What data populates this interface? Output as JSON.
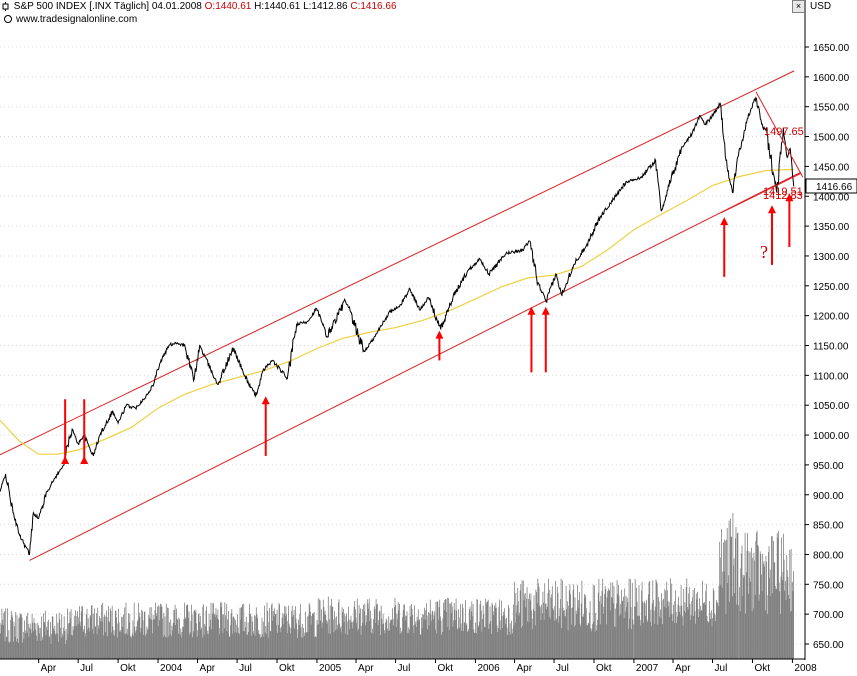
{
  "header": {
    "symbol": "S&P 500 INDEX [.INX  Täglich]",
    "date": "04.01.2008",
    "open": "O:1440.61",
    "high": "H:1440.61",
    "low": "L:1412.86",
    "close": "C:1416.66",
    "source": "www.tradesignalonline.com",
    "unit": "USD",
    "close_button": "×"
  },
  "colors": {
    "price": "#000000",
    "moving_average": "#f0d040",
    "channel": "#e02020",
    "arrows": "#ff0000",
    "volume": "#808080",
    "label_red": "#cc0000"
  },
  "annotations": {
    "level_high": "1497.65",
    "level_mid": "1419.51",
    "level_low": "1412.83",
    "question_mark": "?"
  },
  "chart_data": {
    "type": "line",
    "title": "S&P 500 INDEX [.INX  Täglich]",
    "ylabel": "USD",
    "ylim": [
      640,
      1690
    ],
    "x_tick_labels": [
      "Apr",
      "Jul",
      "Okt",
      "2004",
      "Apr",
      "Jul",
      "Okt",
      "2005",
      "Apr",
      "Jul",
      "Okt",
      "2006",
      "Apr",
      "Jul",
      "Okt",
      "2007",
      "Apr",
      "Jul",
      "Okt",
      "2008"
    ],
    "x_tick_dates": [
      "2003-04-01",
      "2003-07-01",
      "2003-10-01",
      "2004-01-01",
      "2004-04-01",
      "2004-07-01",
      "2004-10-01",
      "2005-01-01",
      "2005-04-01",
      "2005-07-01",
      "2005-10-01",
      "2006-01-01",
      "2006-04-01",
      "2006-07-01",
      "2006-10-01",
      "2007-01-01",
      "2007-04-01",
      "2007-07-01",
      "2007-10-01",
      "2008-01-01"
    ],
    "y_ticks": [
      650,
      700,
      750,
      800,
      850,
      900,
      950,
      1000,
      1050,
      1100,
      1150,
      1200,
      1250,
      1300,
      1350,
      1400,
      1450,
      1500,
      1550,
      1600,
      1650
    ],
    "last_price_label": "1416.66",
    "series": [
      {
        "kind": "price",
        "points": [
          [
            "2003-01-02",
            905
          ],
          [
            "2003-01-15",
            935
          ],
          [
            "2003-02-01",
            870
          ],
          [
            "2003-02-15",
            835
          ],
          [
            "2003-03-11",
            800
          ],
          [
            "2003-03-20",
            870
          ],
          [
            "2003-04-01",
            860
          ],
          [
            "2003-04-20",
            905
          ],
          [
            "2003-05-10",
            930
          ],
          [
            "2003-05-25",
            945
          ],
          [
            "2003-06-17",
            1010
          ],
          [
            "2003-07-01",
            985
          ],
          [
            "2003-07-14",
            1000
          ],
          [
            "2003-08-05",
            965
          ],
          [
            "2003-08-20",
            1000
          ],
          [
            "2003-09-18",
            1040
          ],
          [
            "2003-10-01",
            1020
          ],
          [
            "2003-10-20",
            1050
          ],
          [
            "2003-11-10",
            1045
          ],
          [
            "2003-11-28",
            1060
          ],
          [
            "2003-12-15",
            1075
          ],
          [
            "2004-01-05",
            1120
          ],
          [
            "2004-01-26",
            1150
          ],
          [
            "2004-02-11",
            1155
          ],
          [
            "2004-03-01",
            1150
          ],
          [
            "2004-03-24",
            1093
          ],
          [
            "2004-04-06",
            1150
          ],
          [
            "2004-05-01",
            1110
          ],
          [
            "2004-05-17",
            1085
          ],
          [
            "2004-06-23",
            1145
          ],
          [
            "2004-07-15",
            1105
          ],
          [
            "2004-08-12",
            1065
          ],
          [
            "2004-09-01",
            1110
          ],
          [
            "2004-09-20",
            1125
          ],
          [
            "2004-10-25",
            1095
          ],
          [
            "2004-11-15",
            1185
          ],
          [
            "2004-12-10",
            1190
          ],
          [
            "2004-12-31",
            1212
          ],
          [
            "2005-01-24",
            1165
          ],
          [
            "2005-03-07",
            1225
          ],
          [
            "2005-04-20",
            1140
          ],
          [
            "2005-05-15",
            1165
          ],
          [
            "2005-06-15",
            1205
          ],
          [
            "2005-07-10",
            1215
          ],
          [
            "2005-08-03",
            1245
          ],
          [
            "2005-08-25",
            1210
          ],
          [
            "2005-09-15",
            1230
          ],
          [
            "2005-10-13",
            1177
          ],
          [
            "2005-11-10",
            1230
          ],
          [
            "2005-12-14",
            1275
          ],
          [
            "2006-01-11",
            1295
          ],
          [
            "2006-02-01",
            1270
          ],
          [
            "2006-03-15",
            1305
          ],
          [
            "2006-04-20",
            1310
          ],
          [
            "2006-05-05",
            1325
          ],
          [
            "2006-05-25",
            1255
          ],
          [
            "2006-06-13",
            1223
          ],
          [
            "2006-07-05",
            1270
          ],
          [
            "2006-07-18",
            1235
          ],
          [
            "2006-08-15",
            1285
          ],
          [
            "2006-09-15",
            1320
          ],
          [
            "2006-10-15",
            1365
          ],
          [
            "2006-11-15",
            1395
          ],
          [
            "2006-12-15",
            1425
          ],
          [
            "2007-01-15",
            1430
          ],
          [
            "2007-02-20",
            1460
          ],
          [
            "2007-03-05",
            1375
          ],
          [
            "2007-03-20",
            1410
          ],
          [
            "2007-04-20",
            1480
          ],
          [
            "2007-05-15",
            1505
          ],
          [
            "2007-06-01",
            1535
          ],
          [
            "2007-06-15",
            1520
          ],
          [
            "2007-07-19",
            1555
          ],
          [
            "2007-08-01",
            1460
          ],
          [
            "2007-08-16",
            1406
          ],
          [
            "2007-08-30",
            1470
          ],
          [
            "2007-09-19",
            1530
          ],
          [
            "2007-10-09",
            1565
          ],
          [
            "2007-10-25",
            1515
          ],
          [
            "2007-11-01",
            1510
          ],
          [
            "2007-11-26",
            1407
          ],
          [
            "2007-12-11",
            1515
          ],
          [
            "2007-12-20",
            1465
          ],
          [
            "2007-12-27",
            1480
          ],
          [
            "2008-01-04",
            1416.66
          ]
        ]
      },
      {
        "kind": "moving_average",
        "points": [
          [
            "2003-01-02",
            1025
          ],
          [
            "2003-02-15",
            990
          ],
          [
            "2003-04-01",
            968
          ],
          [
            "2003-05-15",
            968
          ],
          [
            "2003-07-01",
            975
          ],
          [
            "2003-09-01",
            993
          ],
          [
            "2003-11-01",
            1013
          ],
          [
            "2004-01-01",
            1045
          ],
          [
            "2004-03-01",
            1068
          ],
          [
            "2004-05-01",
            1084
          ],
          [
            "2004-07-01",
            1096
          ],
          [
            "2004-09-01",
            1108
          ],
          [
            "2004-11-01",
            1124
          ],
          [
            "2005-01-01",
            1145
          ],
          [
            "2005-03-01",
            1162
          ],
          [
            "2005-05-01",
            1172
          ],
          [
            "2005-07-01",
            1180
          ],
          [
            "2005-09-01",
            1192
          ],
          [
            "2005-11-01",
            1208
          ],
          [
            "2006-01-01",
            1228
          ],
          [
            "2006-03-01",
            1248
          ],
          [
            "2006-05-01",
            1263
          ],
          [
            "2006-07-01",
            1268
          ],
          [
            "2006-09-01",
            1282
          ],
          [
            "2006-11-01",
            1310
          ],
          [
            "2007-01-01",
            1344
          ],
          [
            "2007-03-01",
            1368
          ],
          [
            "2007-05-01",
            1392
          ],
          [
            "2007-07-01",
            1418
          ],
          [
            "2007-09-01",
            1433
          ],
          [
            "2007-11-01",
            1443
          ],
          [
            "2008-01-04",
            1445
          ]
        ]
      },
      {
        "kind": "volume",
        "note": "daily volume bars (in price-axis units)",
        "ranges": [
          [
            "2003-01-02",
            "2003-06-30",
            650,
            710
          ],
          [
            "2003-07-01",
            "2004-12-31",
            660,
            720
          ],
          [
            "2005-01-01",
            "2006-03-31",
            665,
            730
          ],
          [
            "2006-04-01",
            "2006-12-31",
            670,
            760
          ],
          [
            "2007-01-01",
            "2007-07-15",
            680,
            760
          ],
          [
            "2007-07-16",
            "2007-08-31",
            700,
            870
          ],
          [
            "2007-09-01",
            "2008-01-04",
            700,
            840
          ]
        ]
      }
    ],
    "channel_lines": [
      {
        "from": [
          "2003-01-02",
          967
        ],
        "to": [
          "2008-01-05",
          1610
        ]
      },
      {
        "from": [
          "2003-03-11",
          790
        ],
        "to": [
          "2008-01-20",
          1440
        ]
      }
    ],
    "wedge_lines": [
      {
        "from": [
          "2007-10-09",
          1575
        ],
        "to": [
          "2008-01-25",
          1432
        ]
      },
      {
        "from": [
          "2007-07-20",
          1372
        ],
        "to": [
          "2008-01-20",
          1438
        ]
      }
    ],
    "arrows": [
      [
        "2003-06-01",
        1060,
        965
      ],
      [
        "2003-07-15",
        1060,
        965
      ],
      [
        "2004-09-05",
        965,
        1065
      ],
      [
        "2005-10-10",
        1125,
        1175
      ],
      [
        "2006-05-10",
        1105,
        1215
      ],
      [
        "2006-06-12",
        1105,
        1215
      ],
      [
        "2007-07-28",
        1265,
        1365
      ],
      [
        "2007-11-15",
        1285,
        1385
      ],
      [
        "2007-12-25",
        1315,
        1405
      ]
    ]
  }
}
